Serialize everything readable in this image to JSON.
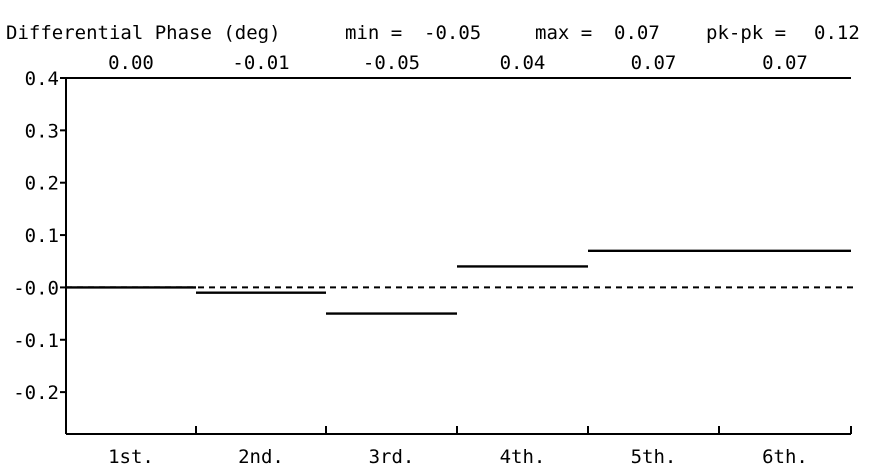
{
  "chart_data": {
    "type": "line",
    "title": "Differential Phase (deg)",
    "stats": {
      "min_label": "min =",
      "min_value": "-0.05",
      "max_label": "max =",
      "max_value": "0.07",
      "pkpk_label": "pk-pk =",
      "pkpk_value": "0.12"
    },
    "categories": [
      "1st.",
      "2nd.",
      "3rd.",
      "4th.",
      "5th.",
      "6th."
    ],
    "values": [
      0.0,
      -0.01,
      -0.05,
      0.04,
      0.07,
      0.07
    ],
    "value_labels": [
      "0.00",
      "-0.01",
      "-0.05",
      "0.04",
      "0.07",
      "0.07"
    ],
    "ylim": [
      -0.28,
      0.4
    ],
    "y_ticks": [
      {
        "value": 0.4,
        "label": "0.4"
      },
      {
        "value": 0.3,
        "label": "0.3"
      },
      {
        "value": 0.2,
        "label": "0.2"
      },
      {
        "value": 0.1,
        "label": "0.1"
      },
      {
        "value": 0.0,
        "label": "-0.0"
      },
      {
        "value": -0.1,
        "label": "-0.1"
      },
      {
        "value": -0.2,
        "label": "-0.2"
      }
    ],
    "reference_line": {
      "value": 0.0,
      "style": "dashed"
    },
    "grid": false,
    "legend": "none"
  }
}
